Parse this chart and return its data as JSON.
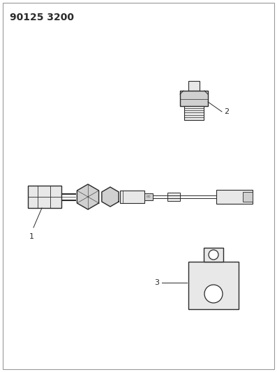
{
  "background_color": "#ffffff",
  "title_text": "90125 3200",
  "title_fontsize": 10,
  "title_fontweight": "bold",
  "line_color": "#2a2a2a",
  "fill_light": "#e8e8e8",
  "fill_med": "#d0d0d0",
  "label_1": "1",
  "label_2": "2",
  "label_3": "3"
}
